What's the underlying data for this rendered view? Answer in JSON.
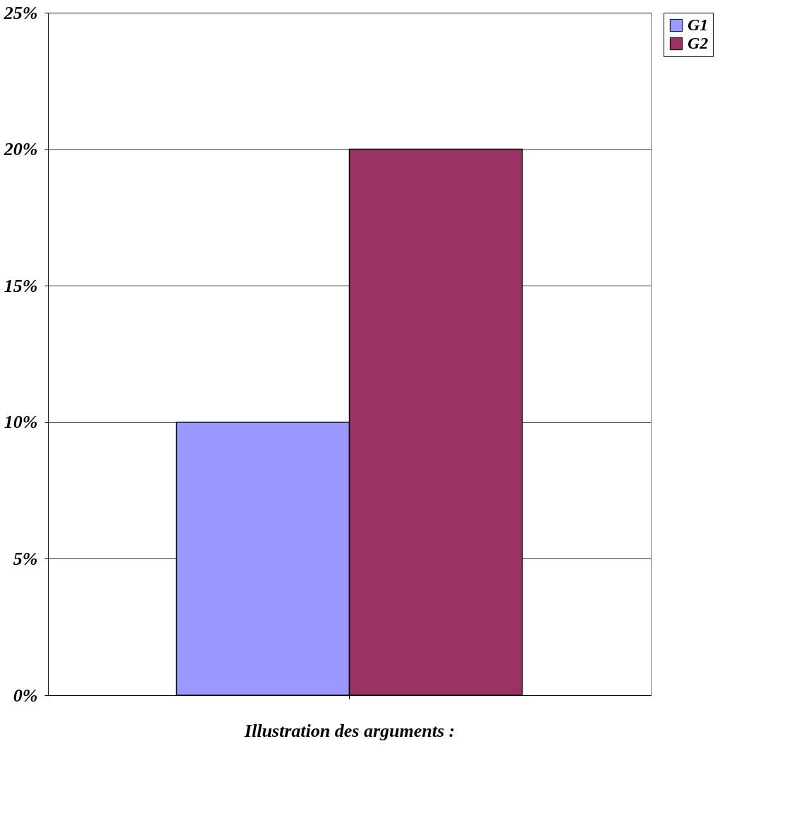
{
  "chart_data": {
    "type": "bar",
    "xlabel": "Illustration des arguments :",
    "categories": [
      null
    ],
    "series": [
      {
        "name": "G1",
        "color": "#9999ff",
        "values": [
          10
        ]
      },
      {
        "name": "G2",
        "color": "#993366",
        "values": [
          20
        ]
      }
    ],
    "ylim": [
      0,
      25
    ],
    "yticks": [
      {
        "value": 0,
        "label": "0%"
      },
      {
        "value": 5,
        "label": "5%"
      },
      {
        "value": 10,
        "label": "10%"
      },
      {
        "value": 15,
        "label": "15%"
      },
      {
        "value": 20,
        "label": "20%"
      },
      {
        "value": 25,
        "label": "25%"
      }
    ],
    "grid": "y",
    "legend": "right"
  }
}
